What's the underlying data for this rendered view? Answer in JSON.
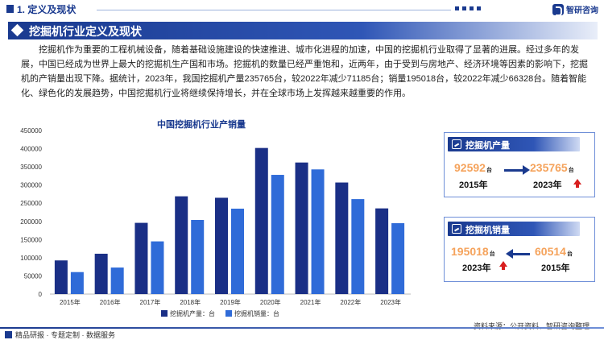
{
  "header": {
    "section_title": "1. 定义及现状",
    "logo_text": "智研咨询",
    "banner_title": "挖掘机行业定义及现状"
  },
  "intro": "挖掘机作为重要的工程机械设备，随着基础设施建设的快速推进、城市化进程的加速，中国的挖掘机行业取得了显著的进展。经过多年的发展，中国已经成为世界上最大的挖掘机生产国和市场。挖掘机的数量已经严重饱和，近两年，由于受到与房地产、经济环境等因素的影响下，挖掘机的产销量出现下降。据统计，2023年，我国挖掘机产量235765台，较2022年减少71185台；销量195018台，较2022年减少66328台。随着智能化、绿色化的发展趋势，中国挖掘机行业将继续保持增长，并在全球市场上发挥越来越重要的作用。",
  "chart_data": {
    "type": "bar",
    "title": "中国挖掘机行业产销量",
    "categories": [
      "2015年",
      "2016年",
      "2017年",
      "2018年",
      "2019年",
      "2020年",
      "2021年",
      "2022年",
      "2023年"
    ],
    "series": [
      {
        "name": "挖掘机产量：台",
        "color": "#1a2f86",
        "values": [
          92592,
          111000,
          196000,
          269000,
          265000,
          402000,
          362000,
          306950,
          235765
        ]
      },
      {
        "name": "挖掘机销量：台",
        "color": "#2f6bd8",
        "values": [
          60514,
          73000,
          145000,
          204000,
          235000,
          328000,
          343000,
          261346,
          195018
        ]
      }
    ],
    "yticks": [
      "0",
      "50000",
      "100000",
      "150000",
      "200000",
      "250000",
      "300000",
      "350000",
      "400000",
      "450000"
    ],
    "ylim": [
      0,
      450000
    ],
    "grid": false,
    "legend": "bottom"
  },
  "card_production": {
    "title": "挖掘机产量",
    "left_value": "92592",
    "left_unit": "台",
    "left_year": "2015年",
    "right_value": "235765",
    "right_unit": "台",
    "right_year": "2023年"
  },
  "card_sales": {
    "title": "挖掘机销量",
    "left_value": "195018",
    "left_unit": "台",
    "left_year": "2023年",
    "right_value": "60514",
    "right_unit": "台",
    "right_year": "2015年"
  },
  "footer": {
    "left": "精品研报 · 专题定制 · 数据服务",
    "right": "资料来源：公开资料、智研咨询整理"
  }
}
